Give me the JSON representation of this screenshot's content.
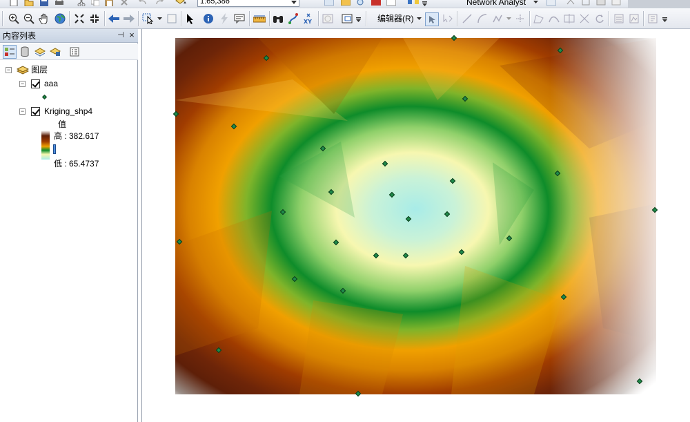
{
  "toolbar": {
    "scale_value": "1:65,386",
    "network_analyst_label": "Network Analyst",
    "editor_label": "编辑器(R)"
  },
  "toc": {
    "title": "内容列表",
    "pin_glyph": "⊣",
    "close_glyph": "×",
    "root_label": "图层",
    "layers": [
      {
        "name": "aaa",
        "checked": true
      },
      {
        "name": "Kriging_shp4",
        "checked": true,
        "legend_title": "值",
        "high_label": "高 : 382.617",
        "low_label": "低 : 65.4737"
      }
    ]
  },
  "colors": {
    "panel_header": "#c8d3e3",
    "point_fill": "#1f8a4a",
    "ramp": [
      "#5e1f08",
      "#a03c00",
      "#f0a000",
      "#0e8c2a",
      "#f7f7b0",
      "#a8ece8"
    ]
  }
}
